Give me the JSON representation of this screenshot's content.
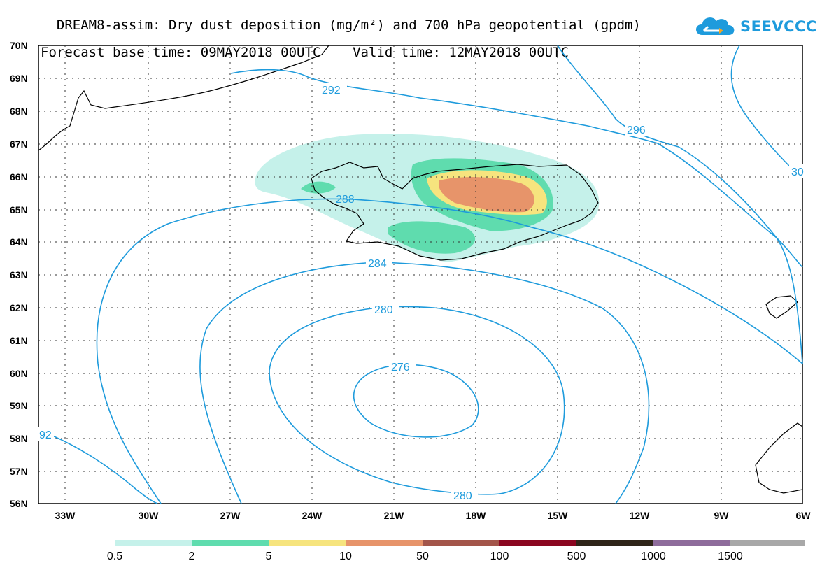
{
  "header": {
    "title_line1": "DREAM8-assim: Dry dust deposition (mg/m²) and 700 hPa geopotential (gpdm)",
    "title_line2": "Forecast base time: 09MAY2018 00UTC    Valid time: 12MAY2018 00UTC"
  },
  "logo": {
    "text": "SEEVCCC",
    "icon": "cloud-logo-icon",
    "color": "#1e9bdc",
    "accent": "#f5a623"
  },
  "map": {
    "lat_labels": [
      "70N",
      "69N",
      "68N",
      "67N",
      "66N",
      "65N",
      "64N",
      "63N",
      "62N",
      "61N",
      "60N",
      "59N",
      "58N",
      "57N",
      "56N"
    ],
    "lon_labels": [
      "33W",
      "30W",
      "27W",
      "24W",
      "21W",
      "18W",
      "15W",
      "12W",
      "9W",
      "6W"
    ],
    "contour_color": "#1e9bdc",
    "contour_labels": {
      "c292_top": "292",
      "c296": "296",
      "c300": "30",
      "c288": "288",
      "c284": "284",
      "c280_top": "280",
      "c276": "276",
      "c280_bottom": "280",
      "c292_left": "92"
    }
  },
  "legend": {
    "colors": [
      "#c5f1ea",
      "#5fdcae",
      "#f6e47e",
      "#e7946a",
      "#a3554a",
      "#8b0620",
      "#2f2519",
      "#8e6c9b",
      "#a8a8a8"
    ],
    "labels": [
      "0.5",
      "2",
      "5",
      "10",
      "50",
      "100",
      "500",
      "1000",
      "1500"
    ]
  }
}
